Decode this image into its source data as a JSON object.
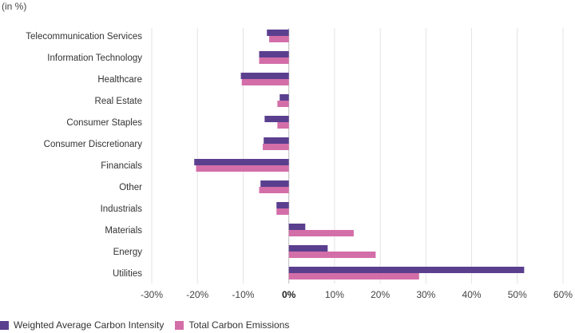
{
  "unit_note": "(in %)",
  "chart_data": {
    "type": "bar",
    "orientation": "horizontal",
    "categories": [
      "Telecommunication Services",
      "Information Technology",
      "Healthcare",
      "Real Estate",
      "Consumer Staples",
      "Consumer Discretionary",
      "Financials",
      "Other",
      "Industrials",
      "Materials",
      "Energy",
      "Utilities"
    ],
    "series": [
      {
        "name": "Weighted Average Carbon Intensity",
        "color": "#5b3f8f",
        "values": [
          -4.8,
          -6.5,
          -10.5,
          -2.0,
          -5.3,
          -5.5,
          -20.7,
          -6.2,
          -2.7,
          3.6,
          8.5,
          51.5
        ]
      },
      {
        "name": "Total Carbon Emissions",
        "color": "#d36ea8",
        "values": [
          -4.3,
          -6.5,
          -10.3,
          -2.5,
          -2.5,
          -5.7,
          -20.3,
          -6.5,
          -2.7,
          14.2,
          19.0,
          28.5
        ]
      }
    ],
    "xlim": [
      -30,
      60
    ],
    "xticks": [
      -30,
      -20,
      -10,
      0,
      10,
      20,
      30,
      40,
      50,
      60
    ],
    "xtick_labels": [
      "-30%",
      "-20%",
      "-10%",
      "0%",
      "10%",
      "20%",
      "30%",
      "40%",
      "50%",
      "60%"
    ],
    "grid": "vertical",
    "legend_position": "bottom-left"
  }
}
